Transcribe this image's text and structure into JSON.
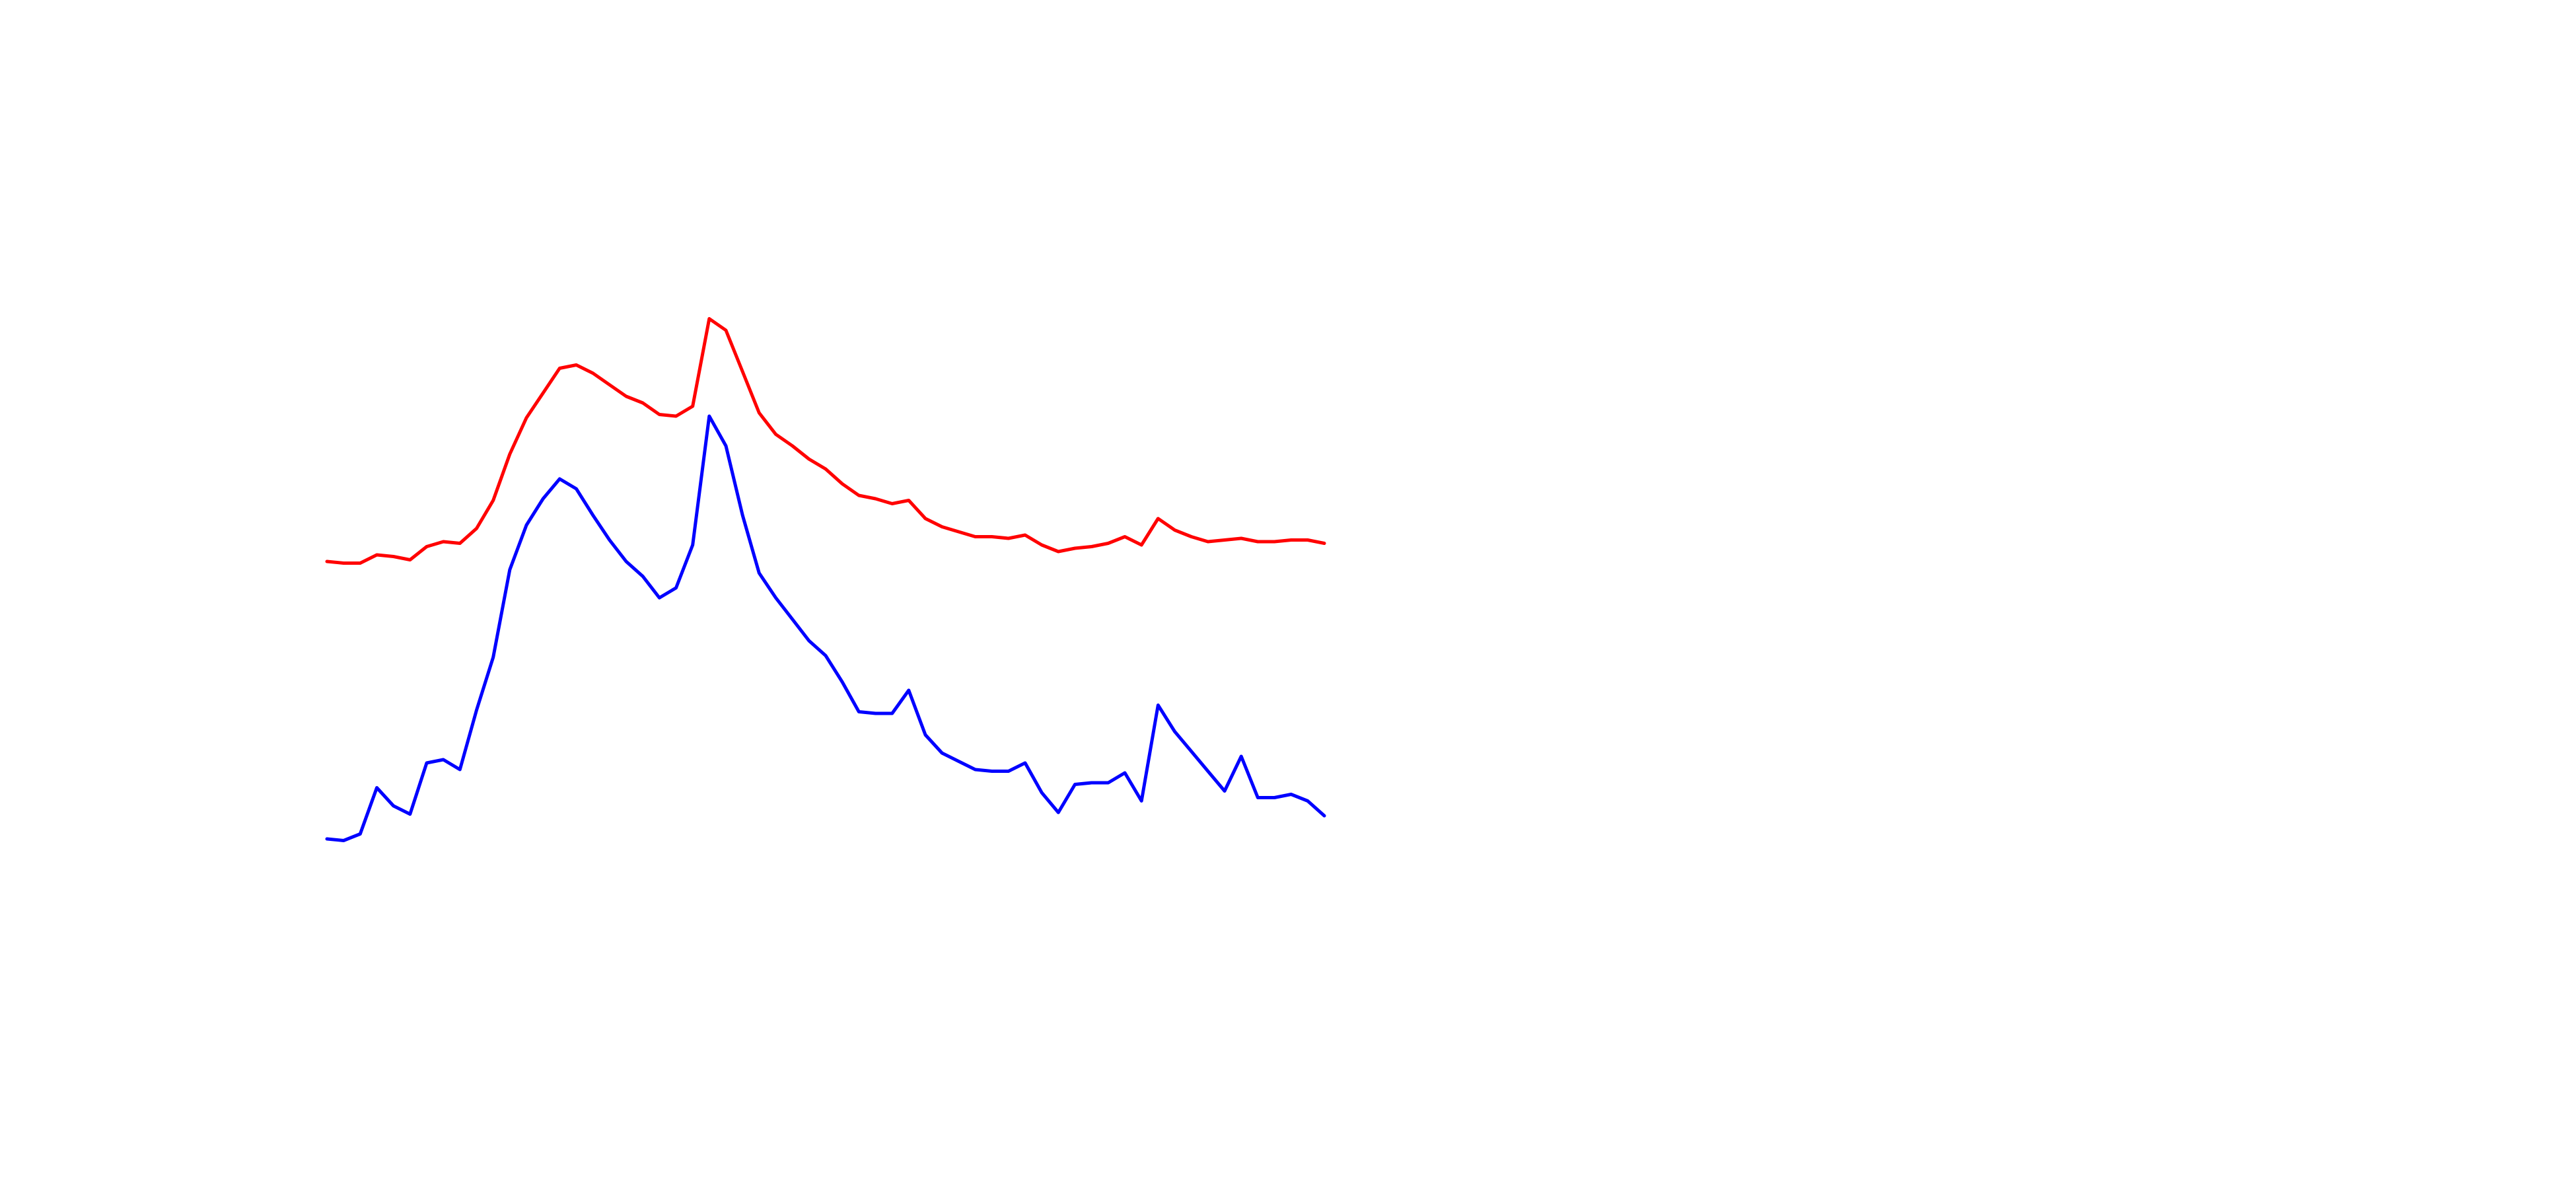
{
  "chart_data": {
    "type": "line",
    "x": [
      0,
      1,
      2,
      3,
      4,
      5,
      6,
      7,
      8,
      9,
      10,
      11,
      12,
      13,
      14,
      15,
      16,
      17,
      18,
      19,
      20,
      21,
      22,
      23,
      24,
      25,
      26,
      27,
      28,
      29,
      30,
      31,
      32,
      33,
      34,
      35,
      36,
      37,
      38,
      39,
      40,
      41,
      42,
      43,
      44,
      45,
      46,
      47,
      48,
      49,
      50,
      51,
      52,
      53,
      54,
      55,
      56,
      57,
      58,
      59,
      60
    ],
    "xlim": [
      0,
      60
    ],
    "ylim": [
      0,
      720
    ],
    "series": [
      {
        "color": "#ff0000",
        "values": [
          380,
          379,
          379,
          384,
          383,
          381,
          389,
          392,
          391,
          400,
          417,
          445,
          467,
          482,
          497,
          499,
          494,
          487,
          480,
          476,
          469,
          468,
          474,
          527,
          520,
          495,
          470,
          457,
          450,
          442,
          436,
          427,
          420,
          418,
          415,
          417,
          406,
          401,
          398,
          395,
          395,
          394,
          396,
          390,
          386,
          388,
          389,
          391,
          395,
          390,
          406,
          399,
          395,
          392,
          393,
          394,
          392,
          392,
          393,
          393,
          391
        ]
      },
      {
        "color": "#0000ff",
        "values": [
          212,
          211,
          215,
          243,
          232,
          227,
          258,
          260,
          254,
          290,
          322,
          375,
          402,
          418,
          430,
          424,
          408,
          393,
          380,
          371,
          358,
          364,
          390,
          468,
          450,
          408,
          373,
          358,
          345,
          332,
          323,
          307,
          289,
          288,
          288,
          302,
          275,
          264,
          259,
          254,
          253,
          253,
          258,
          240,
          228,
          245,
          246,
          246,
          252,
          235,
          293,
          277,
          265,
          253,
          241,
          262,
          237,
          237,
          239,
          235,
          226
        ]
      }
    ]
  }
}
